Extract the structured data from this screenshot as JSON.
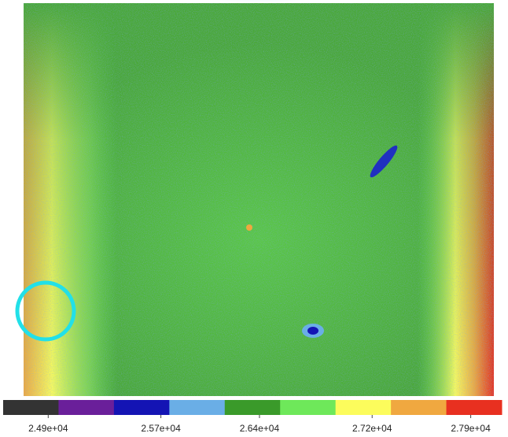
{
  "chart_data": {
    "type": "colorbar",
    "colors": [
      "#333333",
      "#6a1f9a",
      "#1414b4",
      "#6aaee6",
      "#3a9a2a",
      "#6ee85a",
      "#fcfc5c",
      "#f0a840",
      "#e83020"
    ],
    "xlim": [
      24580,
      28120
    ],
    "xticks": [
      {
        "value": 24900,
        "label": "2.49e+04"
      },
      {
        "value": 25700,
        "label": "2.57e+04"
      },
      {
        "value": 26400,
        "label": "2.64e+04"
      },
      {
        "value": 27200,
        "label": "2.72e+04"
      },
      {
        "value": 27900,
        "label": "2.79e+04"
      }
    ]
  }
}
